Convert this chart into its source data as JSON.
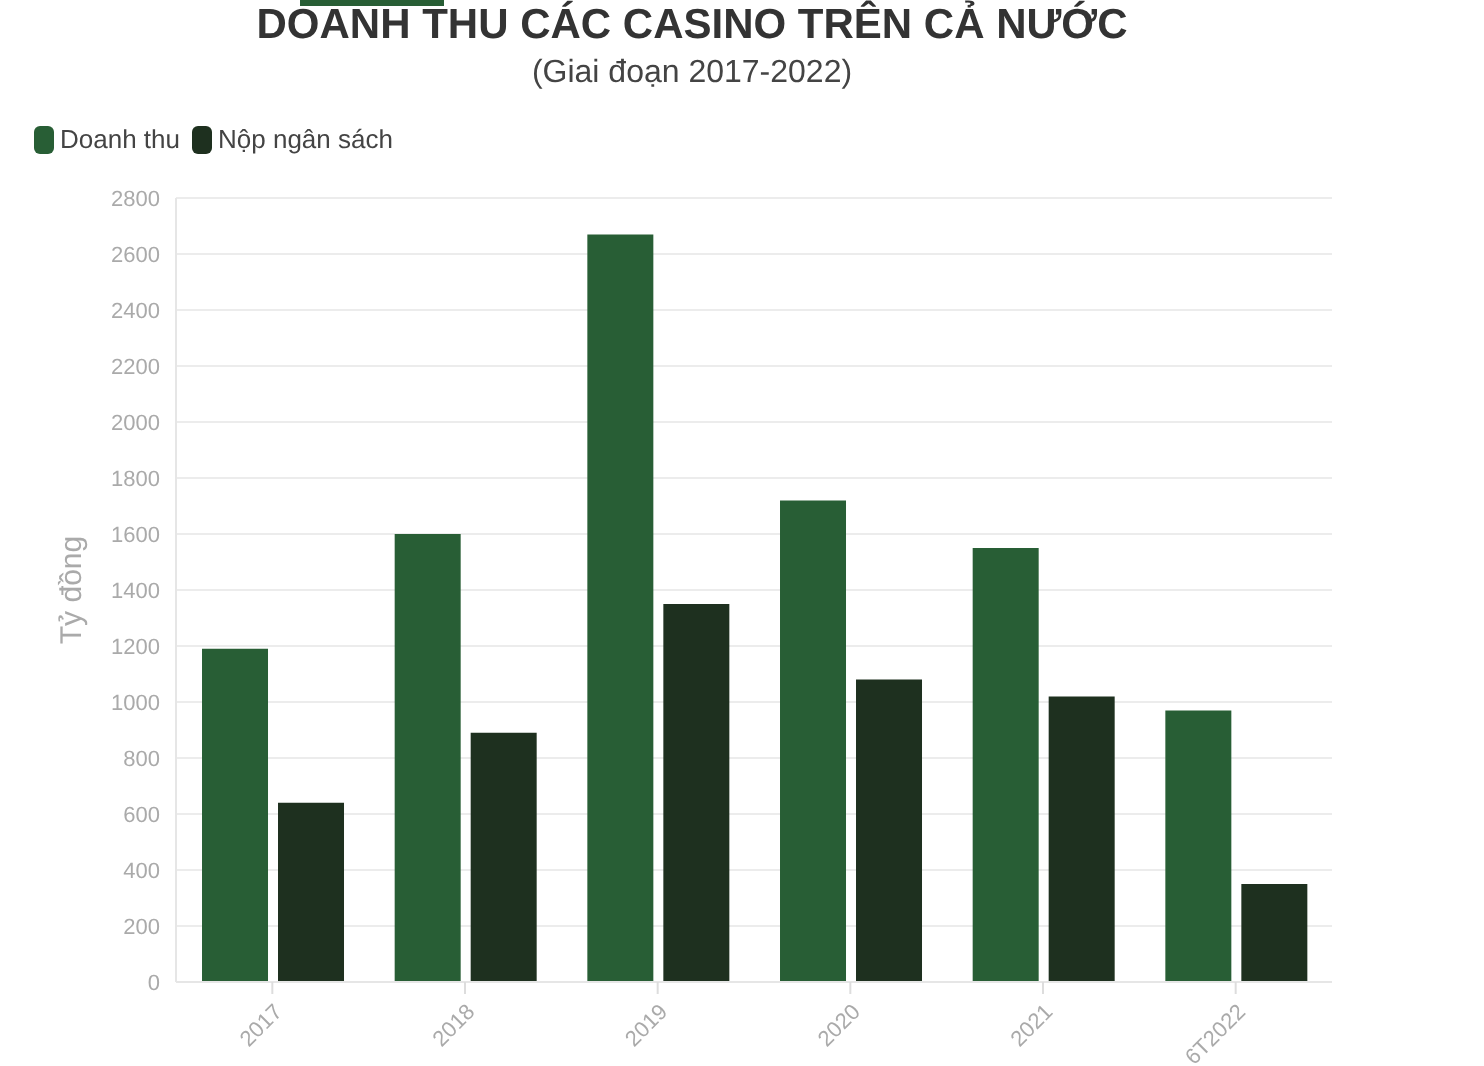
{
  "chart_data": {
    "type": "bar",
    "title": "DOANH THU CÁC CASINO TRÊN CẢ NƯỚC",
    "subtitle": "(Giai đoạn 2017-2022)",
    "ylabel": "Tỷ đồng",
    "categories": [
      "2017",
      "2018",
      "2019",
      "2020",
      "2021",
      "6T2022"
    ],
    "series": [
      {
        "name": "Doanh thu",
        "color": "#285e35",
        "values": [
          1190,
          1600,
          2670,
          1720,
          1550,
          970
        ]
      },
      {
        "name": "Nộp ngân sách",
        "color": "#1e301f",
        "values": [
          640,
          890,
          1350,
          1080,
          1020,
          350
        ]
      }
    ],
    "ylim": [
      0,
      2800
    ],
    "yticks": [
      0,
      200,
      400,
      600,
      800,
      1000,
      1200,
      1400,
      1600,
      1800,
      2000,
      2200,
      2400,
      2600,
      2800
    ],
    "grid": "y",
    "legend": "top left"
  }
}
